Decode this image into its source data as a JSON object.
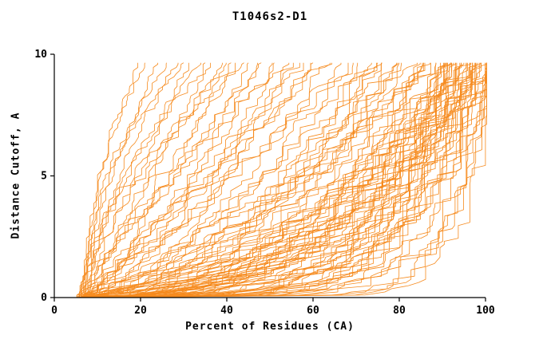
{
  "title": "T1046s2-D1",
  "chart_data": {
    "type": "line",
    "title": "T1046s2-D1",
    "xlabel": "Percent of Residues (CA)",
    "ylabel": "Distance Cutoff, A",
    "xlim": [
      0,
      100
    ],
    "ylim": [
      0,
      10
    ],
    "x_ticks": [
      0,
      20,
      40,
      60,
      80,
      100
    ],
    "y_ticks": [
      0,
      5,
      10
    ],
    "grid": false,
    "legend": "none",
    "line_color": "#f68b1f",
    "axis_color": "#000000",
    "background": "#ffffff",
    "y_max_drawn": 9.65,
    "noise_seed": 42,
    "curves": [
      [
        5,
        19,
        1.6
      ],
      [
        6,
        21,
        2.2
      ],
      [
        5,
        23,
        1.2
      ],
      [
        6,
        26,
        1.9
      ],
      [
        5,
        28,
        1.4
      ],
      [
        7,
        30,
        2.4
      ],
      [
        5,
        31,
        1.0
      ],
      [
        6,
        33,
        1.5
      ],
      [
        5,
        35,
        0.9
      ],
      [
        6,
        36,
        1.8
      ],
      [
        5,
        38,
        1.1
      ],
      [
        7,
        39,
        0.8
      ],
      [
        5,
        41,
        1.4
      ],
      [
        6,
        42,
        1.0
      ],
      [
        5,
        44,
        1.7
      ],
      [
        6,
        45,
        0.9
      ],
      [
        5,
        46,
        0.7
      ],
      [
        6,
        48,
        1.1
      ],
      [
        5,
        50,
        0.6
      ],
      [
        6,
        51,
        0.9
      ],
      [
        5,
        53,
        1.2
      ],
      [
        7,
        54,
        0.6
      ],
      [
        5,
        56,
        0.8
      ],
      [
        6,
        57,
        1.0
      ],
      [
        5,
        59,
        0.7
      ],
      [
        6,
        60,
        0.9
      ],
      [
        5,
        62,
        0.6
      ],
      [
        7,
        63,
        1.1
      ],
      [
        5,
        65,
        0.8
      ],
      [
        6,
        67,
        0.6
      ],
      [
        5,
        69,
        0.9
      ],
      [
        5,
        70,
        0.5
      ],
      [
        6,
        71,
        0.7
      ],
      [
        5,
        72,
        0.4
      ],
      [
        6,
        73,
        0.6
      ],
      [
        5,
        74,
        0.5
      ],
      [
        7,
        75,
        0.8
      ],
      [
        5,
        76,
        0.4
      ],
      [
        6,
        77,
        0.6
      ],
      [
        5,
        78,
        0.5
      ],
      [
        6,
        79,
        0.7
      ],
      [
        5,
        80,
        0.4
      ],
      [
        7,
        81,
        0.6
      ],
      [
        5,
        82,
        0.5
      ],
      [
        6,
        83,
        0.3
      ],
      [
        5,
        84,
        0.6
      ],
      [
        6,
        84,
        0.4
      ],
      [
        5,
        85,
        0.5
      ],
      [
        7,
        85,
        0.7
      ],
      [
        5,
        86,
        0.4
      ],
      [
        6,
        86,
        0.6
      ],
      [
        5,
        87,
        0.2
      ],
      [
        6,
        87,
        0.35
      ],
      [
        5,
        88,
        0.15
      ],
      [
        6,
        88,
        0.3
      ],
      [
        5,
        88,
        0.45
      ],
      [
        7,
        89,
        0.2
      ],
      [
        5,
        89,
        0.35
      ],
      [
        6,
        89,
        0.25
      ],
      [
        5,
        90,
        0.4
      ],
      [
        6,
        90,
        0.18
      ],
      [
        5,
        90,
        0.3
      ],
      [
        7,
        91,
        0.22
      ],
      [
        5,
        91,
        0.38
      ],
      [
        6,
        91,
        0.15
      ],
      [
        5,
        92,
        0.28
      ],
      [
        6,
        92,
        0.42
      ],
      [
        5,
        92,
        0.2
      ],
      [
        7,
        93,
        0.33
      ],
      [
        5,
        93,
        0.16
      ],
      [
        6,
        93,
        0.4
      ],
      [
        5,
        94,
        0.25
      ],
      [
        6,
        94,
        0.35
      ],
      [
        5,
        94,
        0.14
      ],
      [
        7,
        95,
        0.3
      ],
      [
        5,
        95,
        0.45
      ],
      [
        6,
        95,
        0.2
      ],
      [
        5,
        96,
        0.36
      ],
      [
        6,
        96,
        0.16
      ],
      [
        5,
        96,
        0.28
      ],
      [
        7,
        97,
        0.4
      ],
      [
        5,
        97,
        0.22
      ],
      [
        6,
        97,
        0.32
      ],
      [
        5,
        97,
        0.13
      ],
      [
        6,
        98,
        0.38
      ],
      [
        5,
        98,
        0.18
      ],
      [
        7,
        98,
        0.27
      ],
      [
        5,
        98,
        0.44
      ],
      [
        6,
        99,
        0.2
      ],
      [
        5,
        99,
        0.34
      ],
      [
        6,
        99,
        0.15
      ],
      [
        5,
        99,
        0.42
      ],
      [
        7,
        100,
        0.25
      ],
      [
        5,
        100,
        0.12
      ],
      [
        6,
        100,
        0.3
      ],
      [
        5,
        100,
        0.2
      ],
      [
        6,
        100,
        0.4
      ],
      [
        5,
        100,
        0.08
      ],
      [
        7,
        99,
        0.1
      ],
      [
        5,
        98,
        0.1
      ],
      [
        6,
        97,
        0.09
      ],
      [
        5,
        96,
        0.5
      ],
      [
        6,
        95,
        0.55
      ],
      [
        5,
        93,
        0.5
      ],
      [
        6,
        91,
        0.5
      ],
      [
        5,
        89,
        0.5
      ]
    ]
  }
}
